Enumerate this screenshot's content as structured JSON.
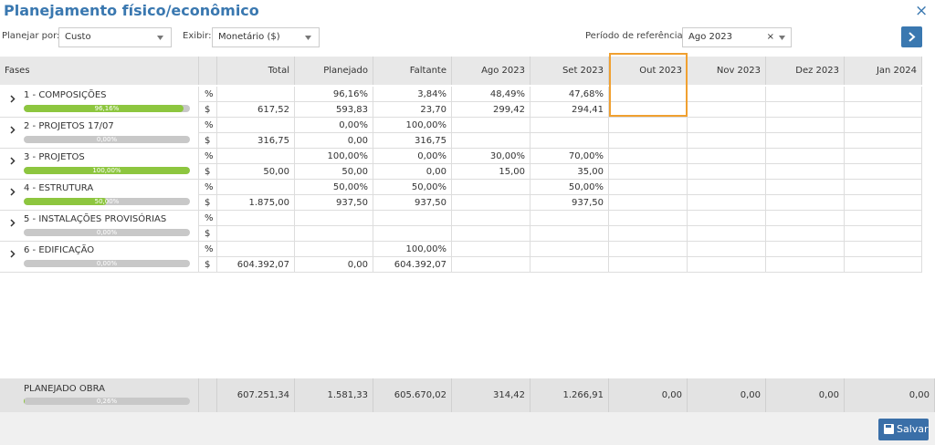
{
  "header": {
    "title": "Planejamento físico/econômico",
    "close": "×"
  },
  "toolbar": {
    "plan_label": "Planejar por:",
    "plan_value": "Custo",
    "show_label": "Exibir:",
    "show_value": "Monetário ($)",
    "period_label": "Período de referência:",
    "period_value": "Ago 2023",
    "clear": "×"
  },
  "table": {
    "first_column": "Fases",
    "columns": [
      "Total",
      "Planejado",
      "Faltante",
      "Ago 2023",
      "Set 2023",
      "Out 2023",
      "Nov 2023",
      "Dez 2023",
      "Jan 2024"
    ],
    "phases": [
      {
        "name": "1 - COMPOSIÇÕES",
        "progress": 96.16,
        "progress_label": "96,16%",
        "rows": [
          {
            "unit": "%",
            "cells": [
              null,
              "96,16%",
              "3,84%",
              "48,49%",
              "47,68%",
              null,
              null,
              null,
              null
            ]
          },
          {
            "unit": "$",
            "cells": [
              "617,52",
              "593,83",
              "23,70",
              "299,42",
              "294,41",
              null,
              null,
              null,
              null
            ]
          }
        ]
      },
      {
        "name": "2 - PROJETOS 17/07",
        "progress": 0,
        "progress_label": "0,00%",
        "rows": [
          {
            "unit": "%",
            "cells": [
              null,
              "0,00%",
              "100,00%",
              null,
              null,
              null,
              null,
              null,
              null
            ]
          },
          {
            "unit": "$",
            "cells": [
              "316,75",
              "0,00",
              "316,75",
              null,
              null,
              null,
              null,
              null,
              null
            ]
          }
        ]
      },
      {
        "name": "3 - PROJETOS",
        "progress": 100,
        "progress_label": "100,00%",
        "rows": [
          {
            "unit": "%",
            "cells": [
              null,
              "100,00%",
              "0,00%",
              "30,00%",
              "70,00%",
              null,
              null,
              null,
              null
            ]
          },
          {
            "unit": "$",
            "cells": [
              "50,00",
              "50,00",
              "0,00",
              "15,00",
              "35,00",
              null,
              null,
              null,
              null
            ]
          }
        ]
      },
      {
        "name": "4 - ESTRUTURA",
        "progress": 50,
        "progress_label": "50,00%",
        "rows": [
          {
            "unit": "%",
            "cells": [
              null,
              "50,00%",
              "50,00%",
              null,
              "50,00%",
              null,
              null,
              null,
              null
            ]
          },
          {
            "unit": "$",
            "cells": [
              "1.875,00",
              "937,50",
              "937,50",
              null,
              "937,50",
              null,
              null,
              null,
              null
            ]
          }
        ]
      },
      {
        "name": "5 - INSTALAÇÕES PROVISÓRIAS",
        "progress": 0,
        "progress_label": "0,00%",
        "rows": [
          {
            "unit": "%",
            "cells": [
              null,
              null,
              null,
              null,
              null,
              null,
              null,
              null,
              null
            ]
          },
          {
            "unit": "$",
            "cells": [
              null,
              null,
              null,
              null,
              null,
              null,
              null,
              null,
              null
            ]
          }
        ]
      },
      {
        "name": "6 - EDIFICAÇÃO",
        "progress": 0,
        "progress_label": "0,00%",
        "rows": [
          {
            "unit": "%",
            "cells": [
              null,
              null,
              "100,00%",
              null,
              null,
              null,
              null,
              null,
              null
            ]
          },
          {
            "unit": "$",
            "cells": [
              "604.392,07",
              "0,00",
              "604.392,07",
              null,
              null,
              null,
              null,
              null,
              null
            ]
          }
        ]
      }
    ],
    "footer_row": {
      "label": "PLANEJADO OBRA",
      "progress": 0.26,
      "progress_label": "0,26%",
      "cells": [
        "607.251,34",
        "1.581,33",
        "605.670,02",
        "314,42",
        "1.266,91",
        "0,00",
        "0,00",
        "0,00",
        "0,00"
      ]
    }
  },
  "save": "Salvar"
}
